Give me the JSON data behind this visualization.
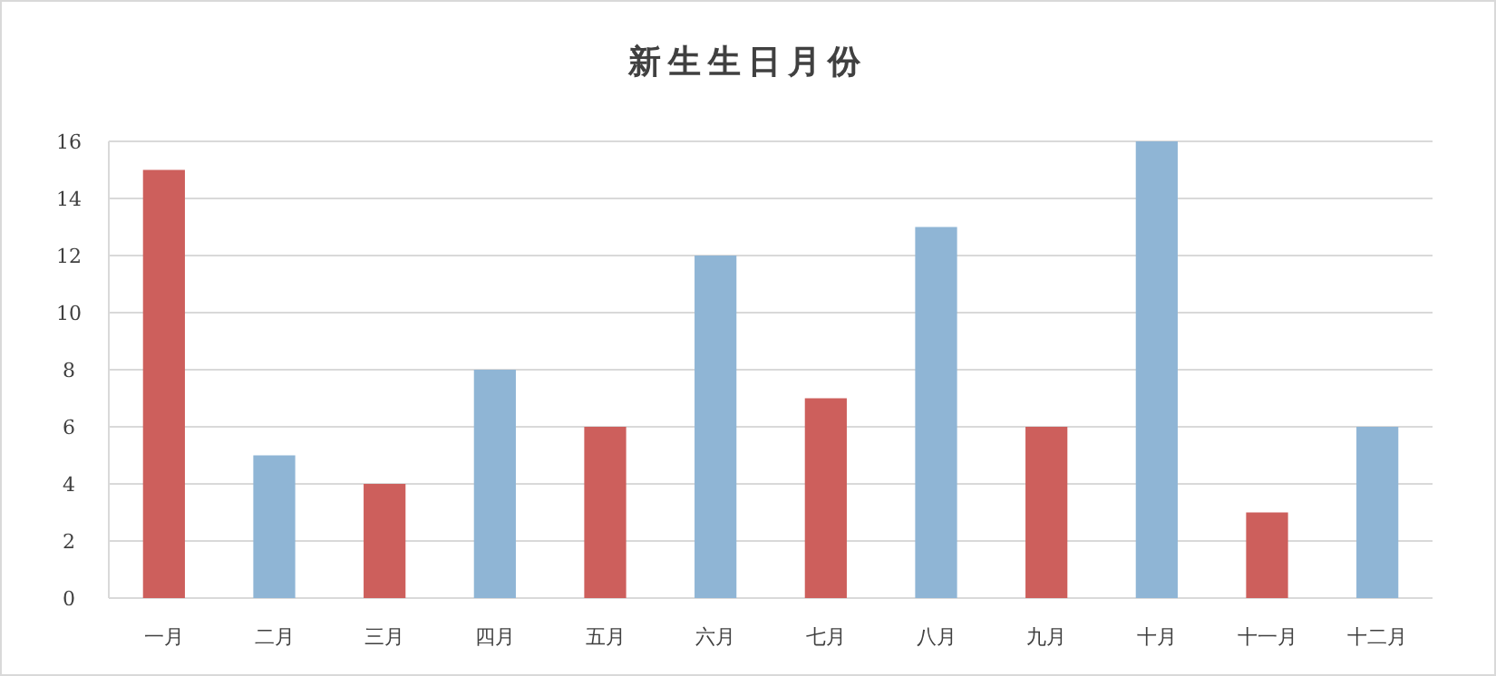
{
  "chart_data": {
    "type": "bar",
    "title": "新生生日月份",
    "categories": [
      "一月",
      "二月",
      "三月",
      "四月",
      "五月",
      "六月",
      "七月",
      "八月",
      "九月",
      "十月",
      "十一月",
      "十二月"
    ],
    "values": [
      15,
      5,
      4,
      8,
      6,
      12,
      7,
      13,
      6,
      16,
      3,
      6
    ],
    "colors": [
      "#cd5f5c",
      "#8fb5d5",
      "#cd5f5c",
      "#8fb5d5",
      "#cd5f5c",
      "#8fb5d5",
      "#cd5f5c",
      "#8fb5d5",
      "#cd5f5c",
      "#8fb5d5",
      "#cd5f5c",
      "#8fb5d5"
    ],
    "ylim": [
      0,
      16
    ],
    "yticks": [
      0,
      2,
      4,
      6,
      8,
      10,
      12,
      14,
      16
    ],
    "grid": "y"
  }
}
